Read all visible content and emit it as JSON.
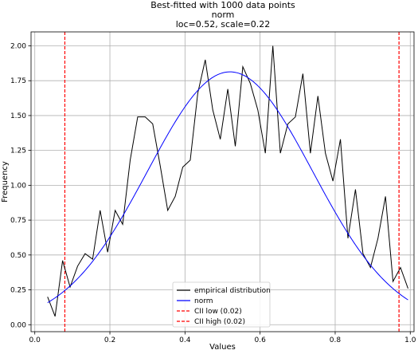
{
  "chart_data": {
    "type": "line",
    "title": [
      "Best-fitted with 1000 data points",
      "norm",
      "loc=0.52, scale=0.22"
    ],
    "xlabel": "Values",
    "ylabel": "Frequency",
    "xlim": [
      -0.01,
      1.01
    ],
    "ylim": [
      -0.05,
      2.1
    ],
    "xticks": [
      0.0,
      0.2,
      0.4,
      0.6,
      0.8,
      1.0
    ],
    "xtick_labels": [
      "0.0",
      "0.2",
      "0.4",
      "0.6",
      "0.8",
      "1.0"
    ],
    "yticks": [
      0.0,
      0.25,
      0.5,
      0.75,
      1.0,
      1.25,
      1.5,
      1.75,
      2.0
    ],
    "ytick_labels": [
      "0.00",
      "0.25",
      "0.50",
      "0.75",
      "1.00",
      "1.25",
      "1.50",
      "1.75",
      "2.00"
    ],
    "grid": true,
    "legend_position": "bottom-center",
    "series": [
      {
        "name": "empirical distribution",
        "color": "#000000",
        "style": "solid",
        "x": [
          0.034,
          0.054,
          0.074,
          0.094,
          0.114,
          0.134,
          0.154,
          0.174,
          0.194,
          0.214,
          0.234,
          0.254,
          0.274,
          0.294,
          0.314,
          0.334,
          0.354,
          0.374,
          0.394,
          0.414,
          0.434,
          0.454,
          0.474,
          0.494,
          0.514,
          0.534,
          0.554,
          0.574,
          0.594,
          0.614,
          0.634,
          0.654,
          0.674,
          0.694,
          0.714,
          0.734,
          0.754,
          0.774,
          0.794,
          0.814,
          0.834,
          0.854,
          0.874,
          0.894,
          0.914,
          0.934,
          0.954,
          0.974,
          0.994
        ],
        "y": [
          0.2,
          0.06,
          0.46,
          0.27,
          0.42,
          0.51,
          0.47,
          0.82,
          0.52,
          0.82,
          0.72,
          1.18,
          1.49,
          1.49,
          1.44,
          1.14,
          0.82,
          0.92,
          1.13,
          1.18,
          1.66,
          1.9,
          1.54,
          1.33,
          1.69,
          1.28,
          1.85,
          1.73,
          1.54,
          1.23,
          2.0,
          1.23,
          1.44,
          1.49,
          1.8,
          1.23,
          1.64,
          1.23,
          1.03,
          1.33,
          0.62,
          0.97,
          0.51,
          0.41,
          0.62,
          0.92,
          0.31,
          0.41,
          0.26
        ]
      },
      {
        "name": "norm",
        "color": "#0000ff",
        "style": "solid",
        "function": "normal_pdf",
        "loc": 0.52,
        "scale": 0.22,
        "x_range": [
          0.034,
          0.994
        ]
      },
      {
        "name": "CII low (0.02)",
        "color": "#ff0000",
        "style": "dashed",
        "vline_x": 0.08
      },
      {
        "name": "CII high (0.02)",
        "color": "#ff0000",
        "style": "dashed",
        "vline_x": 0.97
      }
    ]
  }
}
